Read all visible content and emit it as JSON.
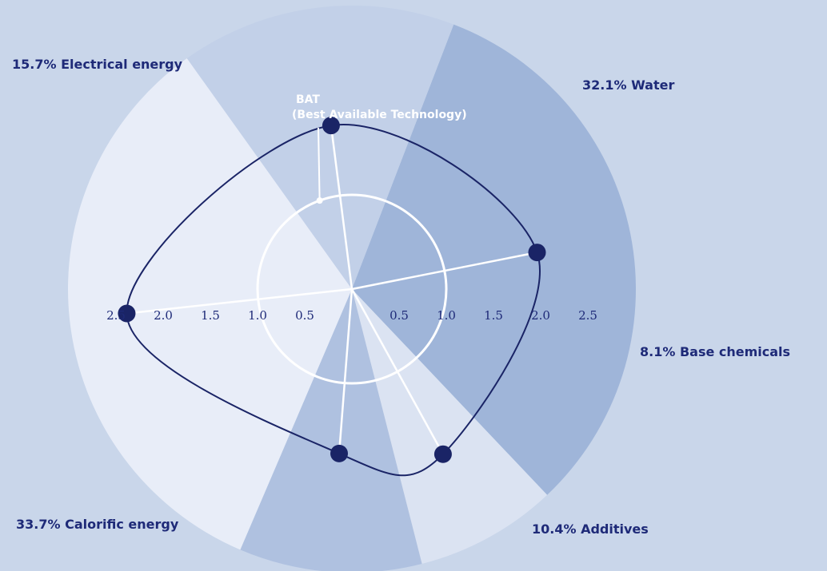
{
  "chart_data": {
    "type": "radar",
    "segments": [
      {
        "label": "32.1% Water",
        "share": 32.1,
        "color": "#9fb5d9"
      },
      {
        "label": "8.1% Base chemicals",
        "share": 8.1,
        "color": "#dbe3f2"
      },
      {
        "label": "10.4% Additives",
        "share": 10.4,
        "color": "#afc1e0"
      },
      {
        "label": "33.7% Calorific energy",
        "share": 33.7,
        "color": "#e8edf8"
      },
      {
        "label": "15.7% Electrical energy",
        "share": 15.7,
        "color": "#c2d0e8"
      }
    ],
    "series": [
      {
        "category": "Water",
        "value": 2.0
      },
      {
        "category": "Base chemicals",
        "value": 2.0
      },
      {
        "category": "Additives",
        "value": 1.75
      },
      {
        "category": "Calorific energy",
        "value": 2.4
      },
      {
        "category": "Electrical energy",
        "value": 1.75
      }
    ],
    "reference": {
      "label": "BAT",
      "sublabel": "(Best Available Technology)",
      "value": 1.0
    },
    "tick_labels": [
      "0.5",
      "1.0",
      "1.5",
      "2.0",
      "2.5"
    ],
    "colors": {
      "line": "#1a2466",
      "marker": "#1a2466",
      "spoke": "#ffffff",
      "background": "#c9d6ea"
    }
  }
}
